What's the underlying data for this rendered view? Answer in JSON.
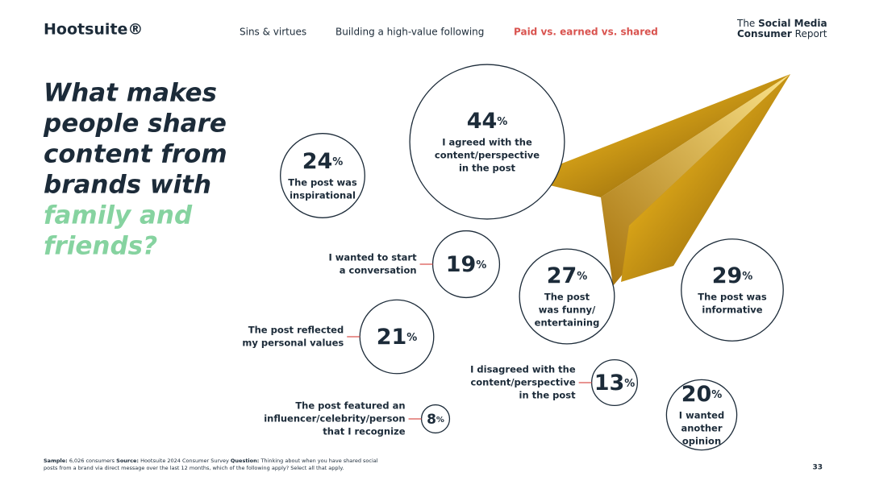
{
  "header": {
    "brand": "Hootsuite®",
    "nav": [
      "Sins & virtues",
      "Building a high-value following",
      "Paid vs. earned vs. shared"
    ],
    "report_title": {
      "line1_light": "The",
      "line1_bold": "Social Media",
      "line2_bold": "Consumer",
      "line2_light": "Report"
    }
  },
  "chart_data": {
    "type": "bubble",
    "unit": "%",
    "title": [
      "What makes",
      "people share",
      "content from",
      "brands with"
    ],
    "title_highlight": [
      "family and",
      "friends?"
    ],
    "categories": [
      [
        "I agreed with the",
        "content/perspective",
        "in the post"
      ],
      [
        "The post was",
        "inspirational"
      ],
      [
        "I wanted to start",
        "a conversation"
      ],
      [
        "The post",
        "was funny/",
        "entertaining"
      ],
      [
        "The post was",
        "informative"
      ],
      [
        "The post reflected",
        "my personal values"
      ],
      [
        "I disagreed with the",
        "content/perspective",
        "in the post"
      ],
      [
        "The post featured an",
        "influencer/celebrity/person",
        "that I recognize"
      ],
      [
        "I wanted",
        "another",
        "opinion"
      ]
    ],
    "values": [
      44,
      24,
      19,
      27,
      29,
      21,
      13,
      8,
      20
    ],
    "color": "#1c2b39",
    "connector_color": "#d9534f",
    "highlight_color": "#86d3a0"
  },
  "footer": {
    "sample_label": "Sample:",
    "sample": "6,026 consumers",
    "source_label": "Source:",
    "source": "Hootsuite 2024 Consumer Survey",
    "question_label": "Question:",
    "question": [
      "Thinking about when you have shared social",
      "posts from a brand via direct message over the last 12 months, which of the following apply? Select all that apply."
    ],
    "page": "33"
  }
}
